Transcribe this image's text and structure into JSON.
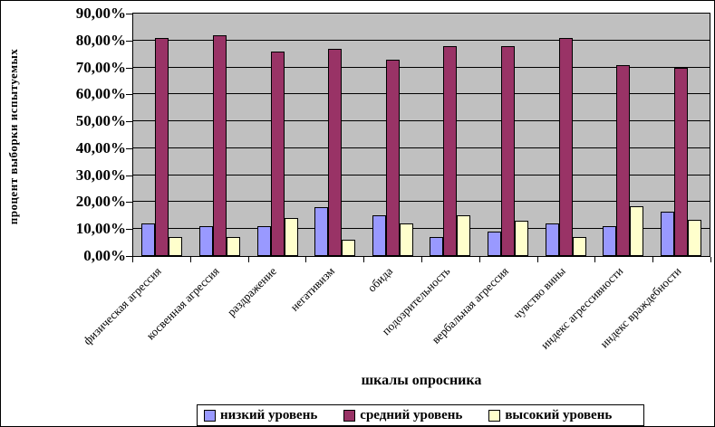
{
  "chart_data": {
    "type": "bar",
    "title": "",
    "xlabel": "шкалы опросника",
    "ylabel": "процент выборки испытуемых",
    "categories": [
      "физическая агрессия",
      "косвенная агрессия",
      "раздражение",
      "негативизм",
      "обида",
      "подозрительность",
      "вербальная агрессия",
      "чувство вины",
      "индекс агрессивности",
      "индекс враждебности"
    ],
    "series": [
      {
        "name": "низкий уровень",
        "color": "#9999FF",
        "values": [
          12,
          11,
          11,
          18,
          15,
          7,
          9,
          12,
          11,
          16.5
        ]
      },
      {
        "name": "средний уровень",
        "color": "#993366",
        "values": [
          81,
          82,
          76,
          77,
          73,
          78,
          78,
          81,
          71,
          70
        ]
      },
      {
        "name": "высокий уровень",
        "color": "#FFFFCC",
        "values": [
          7,
          7,
          14,
          6,
          12,
          15,
          13,
          7,
          18.5,
          13.5
        ]
      }
    ],
    "ylim": [
      0,
      90
    ],
    "ytick_step": 10,
    "ytick_labels": [
      "0,00%",
      "10,00%",
      "20,00%",
      "30,00%",
      "40,00%",
      "50,00%",
      "60,00%",
      "70,00%",
      "80,00%",
      "90,00%"
    ],
    "grid": true,
    "legend_position": "bottom",
    "plot_bg": "#C0C0C0",
    "chart_bg": "#FFFFFF",
    "bar_border_color": "#000000"
  }
}
